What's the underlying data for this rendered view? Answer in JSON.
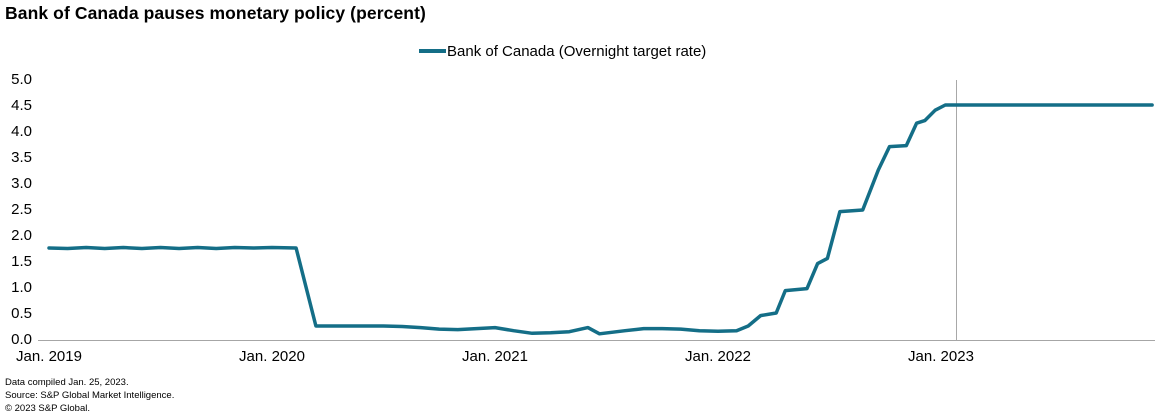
{
  "title": "Bank of Canada pauses monetary policy (percent)",
  "legend": {
    "label": "Bank of Canada (Overnight target rate)"
  },
  "footer": {
    "line1": "Data compiled Jan. 25, 2023.",
    "line2": "Source: S&P Global Market Intelligence.",
    "line3": "© 2023 S&P Global."
  },
  "colors": {
    "line": "#146e87",
    "axis": "#a6a6a6",
    "marker_line": "#a8a8a8",
    "text": "#000000"
  },
  "chart_data": {
    "type": "line",
    "title": "Bank of Canada pauses monetary policy (percent)",
    "xlabel": "",
    "ylabel": "percent",
    "ylim": [
      0.0,
      5.0
    ],
    "y_tick_step": 0.5,
    "grid": "off",
    "legend_position": "top-center",
    "x_domain": [
      "2019-01-01",
      "2023-12-12"
    ],
    "x_ticks": [
      {
        "d": "2019-01-01",
        "label": "Jan. 2019"
      },
      {
        "d": "2020-01-01",
        "label": "Jan. 2020"
      },
      {
        "d": "2021-01-01",
        "label": "Jan. 2021"
      },
      {
        "d": "2022-01-01",
        "label": "Jan. 2022"
      },
      {
        "d": "2023-01-01",
        "label": "Jan. 2023"
      }
    ],
    "y_ticks": [
      5.0,
      4.5,
      4.0,
      3.5,
      3.0,
      2.5,
      2.0,
      1.5,
      1.0,
      0.5,
      0.0
    ],
    "annotations": [
      {
        "type": "vline",
        "d": "2023-01-25",
        "note": "policy pause / data compiled date"
      }
    ],
    "series": [
      {
        "name": "Bank of Canada (Overnight target rate)",
        "points": [
          {
            "d": "2019-01-01",
            "v": 1.75
          },
          {
            "d": "2019-02-01",
            "v": 1.74
          },
          {
            "d": "2019-03-01",
            "v": 1.76
          },
          {
            "d": "2019-04-01",
            "v": 1.74
          },
          {
            "d": "2019-05-01",
            "v": 1.76
          },
          {
            "d": "2019-06-01",
            "v": 1.74
          },
          {
            "d": "2019-07-01",
            "v": 1.76
          },
          {
            "d": "2019-08-01",
            "v": 1.74
          },
          {
            "d": "2019-09-01",
            "v": 1.76
          },
          {
            "d": "2019-10-01",
            "v": 1.74
          },
          {
            "d": "2019-11-01",
            "v": 1.76
          },
          {
            "d": "2019-12-01",
            "v": 1.75
          },
          {
            "d": "2020-01-01",
            "v": 1.76
          },
          {
            "d": "2020-02-10",
            "v": 1.75
          },
          {
            "d": "2020-03-12",
            "v": 0.25
          },
          {
            "d": "2020-04-01",
            "v": 0.25
          },
          {
            "d": "2020-05-01",
            "v": 0.25
          },
          {
            "d": "2020-06-01",
            "v": 0.25
          },
          {
            "d": "2020-07-01",
            "v": 0.25
          },
          {
            "d": "2020-08-01",
            "v": 0.24
          },
          {
            "d": "2020-09-01",
            "v": 0.22
          },
          {
            "d": "2020-10-01",
            "v": 0.19
          },
          {
            "d": "2020-11-01",
            "v": 0.18
          },
          {
            "d": "2020-12-01",
            "v": 0.2
          },
          {
            "d": "2021-01-01",
            "v": 0.22
          },
          {
            "d": "2021-02-01",
            "v": 0.16
          },
          {
            "d": "2021-03-01",
            "v": 0.11
          },
          {
            "d": "2021-04-01",
            "v": 0.12
          },
          {
            "d": "2021-05-01",
            "v": 0.14
          },
          {
            "d": "2021-06-01",
            "v": 0.22
          },
          {
            "d": "2021-06-20",
            "v": 0.1
          },
          {
            "d": "2021-08-01",
            "v": 0.16
          },
          {
            "d": "2021-09-01",
            "v": 0.2
          },
          {
            "d": "2021-10-01",
            "v": 0.2
          },
          {
            "d": "2021-11-01",
            "v": 0.19
          },
          {
            "d": "2021-12-01",
            "v": 0.16
          },
          {
            "d": "2022-01-01",
            "v": 0.15
          },
          {
            "d": "2022-02-01",
            "v": 0.16
          },
          {
            "d": "2022-02-20",
            "v": 0.25
          },
          {
            "d": "2022-03-10",
            "v": 0.45
          },
          {
            "d": "2022-04-05",
            "v": 0.5
          },
          {
            "d": "2022-04-20",
            "v": 0.93
          },
          {
            "d": "2022-05-25",
            "v": 0.97
          },
          {
            "d": "2022-06-12",
            "v": 1.45
          },
          {
            "d": "2022-06-28",
            "v": 1.55
          },
          {
            "d": "2022-07-18",
            "v": 2.45
          },
          {
            "d": "2022-08-25",
            "v": 2.48
          },
          {
            "d": "2022-09-20",
            "v": 3.25
          },
          {
            "d": "2022-10-08",
            "v": 3.7
          },
          {
            "d": "2022-11-05",
            "v": 3.72
          },
          {
            "d": "2022-11-22",
            "v": 4.15
          },
          {
            "d": "2022-12-05",
            "v": 4.2
          },
          {
            "d": "2022-12-22",
            "v": 4.4
          },
          {
            "d": "2023-01-08",
            "v": 4.5
          },
          {
            "d": "2023-01-25",
            "v": 4.5
          },
          {
            "d": "2023-04-01",
            "v": 4.5
          },
          {
            "d": "2023-08-01",
            "v": 4.5
          },
          {
            "d": "2023-12-12",
            "v": 4.5
          }
        ]
      }
    ]
  }
}
